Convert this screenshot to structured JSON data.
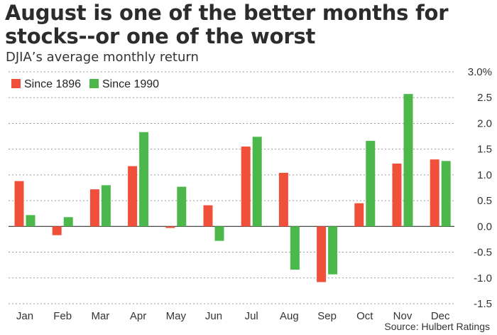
{
  "chart_data": {
    "type": "bar",
    "title": "August is one of the better months for stocks--or one of the worst",
    "subtitle": "DJIA’s average monthly return",
    "source": "Source: Hulbert Ratings",
    "categories": [
      "Jan",
      "Feb",
      "Mar",
      "Apr",
      "May",
      "Jun",
      "Jul",
      "Aug",
      "Sep",
      "Oct",
      "Nov",
      "Dec"
    ],
    "series": [
      {
        "name": "Since 1896",
        "color": "#f0503a",
        "values": [
          0.88,
          -0.17,
          0.72,
          1.17,
          -0.03,
          0.41,
          1.55,
          1.04,
          -1.08,
          0.45,
          1.22,
          1.3
        ]
      },
      {
        "name": "Since 1990",
        "color": "#4cb84c",
        "values": [
          0.22,
          0.18,
          0.8,
          1.83,
          0.77,
          -0.28,
          1.74,
          -0.84,
          -0.93,
          1.66,
          2.57,
          1.27
        ]
      }
    ],
    "ylim": [
      -1.5,
      3.0
    ],
    "yticks": [
      3.0,
      2.5,
      2.0,
      1.5,
      1.0,
      0.5,
      0.0,
      -0.5,
      -1.0,
      -1.5
    ],
    "ytick_labels": [
      "3.0%",
      "2.5",
      "2.0",
      "1.5",
      "1.0",
      "0.5",
      "0.0",
      "-0.5",
      "-1.0",
      "-1.5"
    ],
    "legend_position": "top-left",
    "grid": "dotted horizontal",
    "xlabel": "",
    "ylabel": ""
  }
}
